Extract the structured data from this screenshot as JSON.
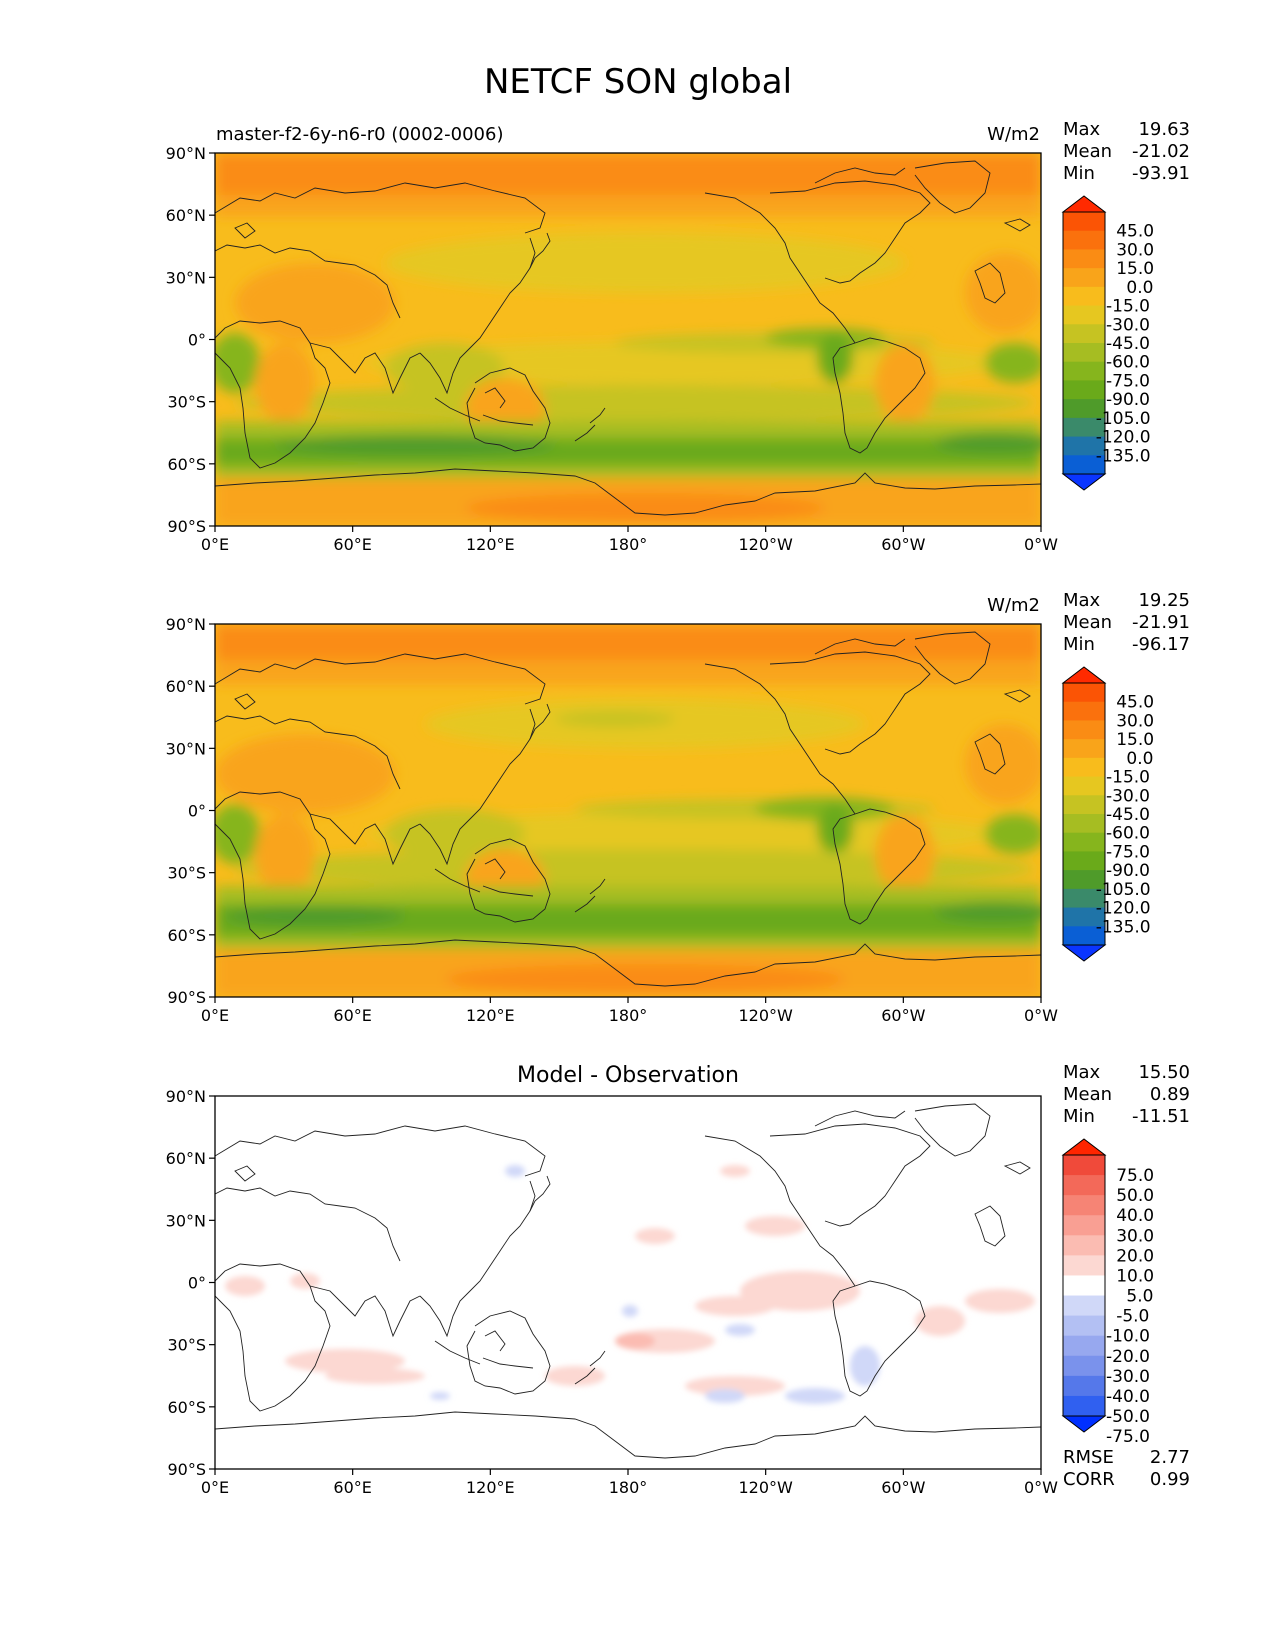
{
  "title": "NETCF SON global",
  "lon_ticks": [
    "0°E",
    "60°E",
    "120°E",
    "180°",
    "120°W",
    "60°W",
    "0°W"
  ],
  "lat_ticks": [
    "90°N",
    "60°N",
    "30°N",
    "0°",
    "30°S",
    "60°S",
    "90°S"
  ],
  "stat_labels": {
    "max": "Max",
    "mean": "Mean",
    "min": "Min",
    "rmse": "RMSE",
    "corr": "CORR"
  },
  "colors": {
    "field_levels": [
      "#0a35ff",
      "#0a5fd5",
      "#1f74a8",
      "#3a8a6a",
      "#4f9b2a",
      "#6aaa1a",
      "#86b51d",
      "#a6bd22",
      "#c6c322",
      "#e6c720",
      "#f8bc1c",
      "#f9a41a",
      "#fa8c14",
      "#fa710d",
      "#fb5405",
      "#ff2a00"
    ],
    "diff_levels": [
      "#0030ff",
      "#3060f0",
      "#5578ea",
      "#7a92ec",
      "#97a8ef",
      "#b3c0f3",
      "#d0d8f8",
      "#ffffff",
      "#fcd8d2",
      "#fbbcb2",
      "#f99f93",
      "#f68475",
      "#f36959",
      "#f04a3a",
      "#ff2500"
    ]
  },
  "panels": [
    {
      "id": "model",
      "left_title": "master-f2-6y-n6-r0 (0002-0006)",
      "center_title": "",
      "units": "W/m2",
      "stats": {
        "max": "19.63",
        "mean": "-21.02",
        "min": "-93.91"
      },
      "colorbar_ticks": [
        "45.0",
        "30.0",
        "15.0",
        "0.0",
        "-15.0",
        "-30.0",
        "-45.0",
        "-60.0",
        "-75.0",
        "-90.0",
        "-105.0",
        "-120.0",
        "-135.0"
      ]
    },
    {
      "id": "obs",
      "left_title": "",
      "center_title": "",
      "units": "W/m2",
      "stats": {
        "max": "19.25",
        "mean": "-21.91",
        "min": "-96.17"
      },
      "colorbar_ticks": [
        "45.0",
        "30.0",
        "15.0",
        "0.0",
        "-15.0",
        "-30.0",
        "-45.0",
        "-60.0",
        "-75.0",
        "-90.0",
        "-105.0",
        "-120.0",
        "-135.0"
      ]
    },
    {
      "id": "diff",
      "left_title": "",
      "center_title": "Model - Observation",
      "units": "",
      "stats": {
        "max": "15.50",
        "mean": "0.89",
        "min": "-11.51"
      },
      "extra_stats": {
        "rmse": "2.77",
        "corr": "0.99"
      },
      "colorbar_ticks": [
        "75.0",
        "50.0",
        "40.0",
        "30.0",
        "20.0",
        "10.0",
        "5.0",
        "-5.0",
        "-10.0",
        "-20.0",
        "-30.0",
        "-40.0",
        "-50.0",
        "-75.0"
      ]
    }
  ]
}
